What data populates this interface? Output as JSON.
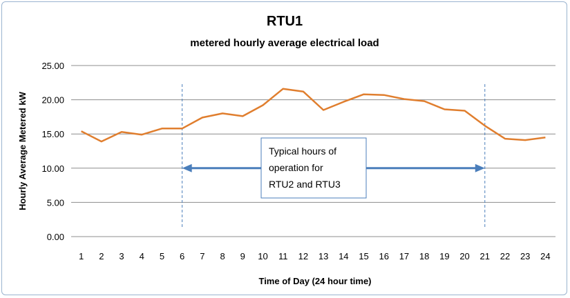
{
  "chart_data": {
    "type": "line",
    "title": "RTU1",
    "subtitle": "metered hourly average electrical load",
    "xlabel": "Time of Day (24 hour time)",
    "ylabel": "Hourly Average Metered kW",
    "ylim": [
      0,
      25
    ],
    "yticks": [
      "0.00",
      "5.00",
      "10.00",
      "15.00",
      "20.00",
      "25.00"
    ],
    "grid": true,
    "categories": [
      "1",
      "2",
      "3",
      "4",
      "5",
      "6",
      "7",
      "8",
      "9",
      "10",
      "11",
      "12",
      "13",
      "14",
      "15",
      "16",
      "17",
      "18",
      "19",
      "20",
      "21",
      "22",
      "23",
      "24"
    ],
    "series": [
      {
        "color": "#e07e2e",
        "values": [
          15.4,
          13.9,
          15.3,
          14.9,
          15.8,
          15.8,
          17.4,
          18.0,
          17.6,
          19.2,
          21.6,
          21.2,
          18.5,
          19.7,
          20.8,
          20.7,
          20.1,
          19.8,
          18.6,
          18.4,
          16.2,
          14.3,
          14.1,
          14.5
        ]
      }
    ],
    "annotation": {
      "lines": [
        "Typical hours of",
        "operation for",
        "RTU2 and RTU3"
      ],
      "range_hours": [
        6,
        21
      ],
      "arrow_value": 10,
      "arrow_color": "#4a7ebb",
      "marker_color": "#4a7ebb"
    }
  }
}
